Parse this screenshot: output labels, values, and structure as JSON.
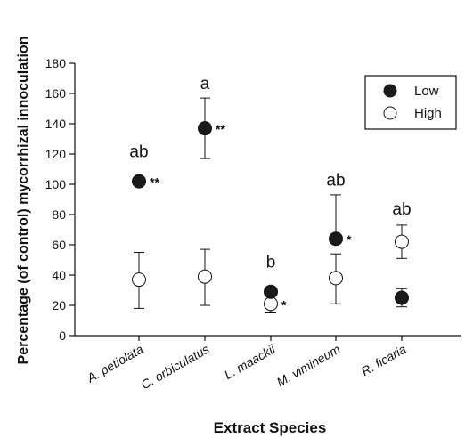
{
  "chart_data": {
    "type": "scatter",
    "title": "",
    "xlabel": "Extract Species",
    "ylabel": "Percentage (of control) mycorrhizal innoculation",
    "ylim": [
      0,
      180
    ],
    "yticks": [
      0,
      20,
      40,
      60,
      80,
      100,
      120,
      140,
      160,
      180
    ],
    "categories": [
      "A. petiolata",
      "C. orbiculatus",
      "L. maackii",
      "M. vimineum",
      "R. ficaria"
    ],
    "grid": false,
    "legend_position": "top-right",
    "series": [
      {
        "name": "Low",
        "marker": "filled-circle",
        "color": "#1a1a1a",
        "values": [
          102,
          137,
          29,
          64,
          25
        ],
        "err_low": [
          null,
          117,
          null,
          null,
          19
        ],
        "err_high": [
          null,
          157,
          null,
          93,
          31
        ],
        "significance": [
          "**",
          "**",
          "",
          "*",
          ""
        ]
      },
      {
        "name": "High",
        "marker": "open-circle",
        "color": "#ffffff",
        "values": [
          37,
          39,
          21,
          38,
          62
        ],
        "err_low": [
          18,
          20,
          15,
          21,
          51
        ],
        "err_high": [
          55,
          57,
          null,
          54,
          73
        ],
        "significance": [
          "",
          "",
          "*",
          "",
          ""
        ]
      }
    ],
    "group_letters": [
      {
        "category": "A. petiolata",
        "text": "ab",
        "y": 118
      },
      {
        "category": "C. orbiculatus",
        "text": "a",
        "y": 163
      },
      {
        "category": "L. maackii",
        "text": "b",
        "y": 45
      },
      {
        "category": "M. vimineum",
        "text": "ab",
        "y": 99
      },
      {
        "category": "R. ficaria",
        "text": "ab",
        "y": 80
      }
    ]
  }
}
